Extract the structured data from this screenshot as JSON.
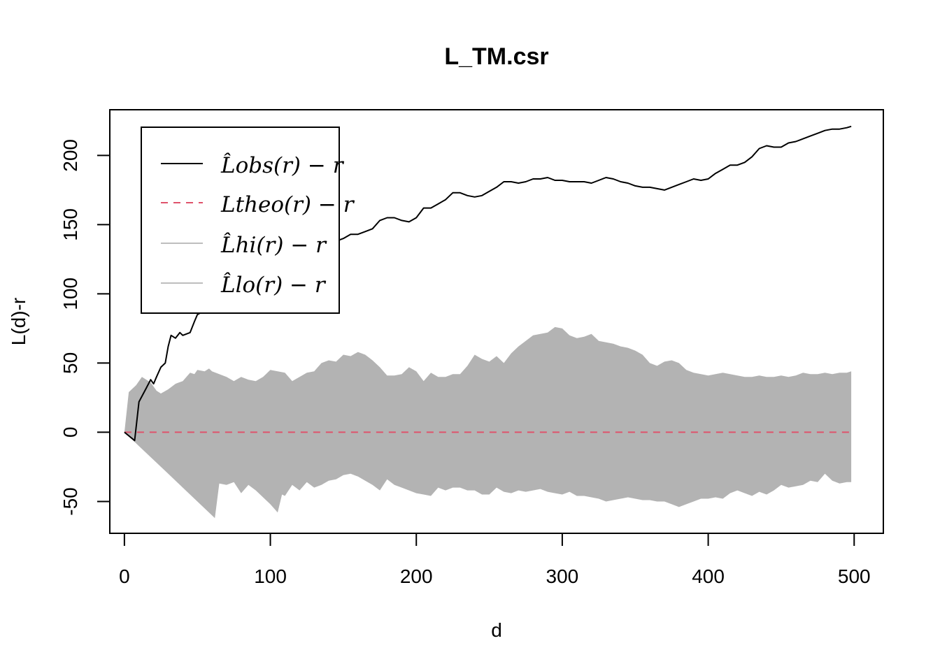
{
  "chart_data": {
    "type": "line",
    "title": "L_TM.csr",
    "xlabel": "d",
    "ylabel": "L(d)-r",
    "xlim": [
      -10,
      520
    ],
    "ylim": [
      -73,
      233
    ],
    "x_ticks": [
      0,
      100,
      200,
      300,
      400,
      500
    ],
    "y_ticks": [
      -50,
      0,
      50,
      100,
      150,
      200
    ],
    "x_tick_labels": [
      "0",
      "100",
      "200",
      "300",
      "400",
      "500"
    ],
    "y_tick_labels": [
      "-50",
      "0",
      "50",
      "100",
      "150",
      "200"
    ],
    "legend": {
      "position": "top-left",
      "entries": [
        {
          "label": "L̂obs(r) − r",
          "color": "#000000",
          "style": "solid"
        },
        {
          "label": "Ltheo(r) − r",
          "color": "#DF536B",
          "style": "dashed"
        },
        {
          "label": "L̂hi(r) − r",
          "color": "#BEBEBE",
          "style": "solid"
        },
        {
          "label": "L̂lo(r) − r",
          "color": "#BEBEBE",
          "style": "solid"
        }
      ]
    },
    "colors": {
      "obs": "#000000",
      "theo": "#DF536B",
      "envelope": "#B3B3B3"
    },
    "series": [
      {
        "name": "L̂obs(r) − r",
        "x": [
          0,
          7,
          10,
          15,
          18,
          20,
          22,
          25,
          28,
          30,
          32,
          35,
          38,
          40,
          45,
          48,
          50,
          55,
          58,
          60,
          62,
          65,
          68,
          70,
          75,
          80,
          85,
          88,
          90,
          95,
          98,
          100,
          105,
          110,
          115,
          120,
          125,
          130,
          135,
          140,
          145,
          150,
          155,
          160,
          165,
          170,
          175,
          180,
          185,
          190,
          195,
          200,
          205,
          210,
          215,
          220,
          225,
          230,
          235,
          240,
          245,
          250,
          255,
          260,
          265,
          270,
          275,
          280,
          285,
          290,
          295,
          300,
          305,
          310,
          315,
          320,
          325,
          330,
          335,
          340,
          345,
          350,
          355,
          360,
          365,
          370,
          375,
          380,
          385,
          390,
          395,
          400,
          405,
          410,
          415,
          420,
          425,
          430,
          435,
          440,
          445,
          450,
          455,
          460,
          465,
          470,
          475,
          480,
          485,
          490,
          495,
          498
        ],
        "y": [
          0,
          -6,
          22,
          32,
          38,
          35,
          40,
          47,
          50,
          62,
          70,
          68,
          72,
          70,
          72,
          80,
          85,
          88,
          92,
          95,
          98,
          100,
          101,
          100,
          104,
          108,
          112,
          114,
          116,
          115,
          113,
          112,
          118,
          120,
          120,
          122,
          127,
          125,
          128,
          134,
          138,
          140,
          143,
          143,
          145,
          147,
          153,
          155,
          155,
          153,
          152,
          155,
          162,
          162,
          165,
          168,
          173,
          173,
          171,
          170,
          171,
          174,
          177,
          181,
          181,
          180,
          181,
          183,
          183,
          184,
          182,
          182,
          181,
          181,
          181,
          180,
          182,
          184,
          183,
          181,
          180,
          178,
          177,
          177,
          176,
          175,
          177,
          179,
          181,
          183,
          182,
          183,
          187,
          190,
          193,
          193,
          195,
          199,
          205,
          207,
          206,
          206,
          209,
          210,
          212,
          214,
          216,
          218,
          219,
          219,
          220,
          221
        ]
      },
      {
        "name": "Ltheo(r) − r",
        "x": [
          0,
          498
        ],
        "y": [
          0,
          0
        ]
      },
      {
        "name": "L̂hi(r) − r",
        "x": [
          0,
          3,
          8,
          12,
          15,
          18,
          22,
          25,
          30,
          35,
          40,
          45,
          48,
          50,
          55,
          58,
          60,
          65,
          70,
          75,
          80,
          85,
          90,
          95,
          100,
          105,
          110,
          115,
          120,
          125,
          130,
          135,
          140,
          145,
          150,
          155,
          160,
          165,
          170,
          175,
          180,
          185,
          190,
          195,
          200,
          205,
          210,
          215,
          220,
          225,
          230,
          235,
          240,
          245,
          250,
          255,
          260,
          265,
          270,
          275,
          280,
          285,
          290,
          295,
          300,
          305,
          310,
          315,
          320,
          325,
          330,
          335,
          340,
          345,
          350,
          355,
          360,
          365,
          370,
          375,
          380,
          385,
          390,
          395,
          400,
          405,
          410,
          415,
          420,
          425,
          430,
          435,
          440,
          445,
          450,
          455,
          460,
          465,
          470,
          475,
          480,
          485,
          490,
          495,
          498
        ],
        "y": [
          0,
          29,
          34,
          40,
          38,
          36,
          30,
          28,
          31,
          35,
          37,
          43,
          42,
          45,
          44,
          46,
          44,
          42,
          40,
          37,
          40,
          38,
          37,
          40,
          45,
          44,
          43,
          37,
          40,
          43,
          44,
          50,
          52,
          51,
          56,
          55,
          58,
          56,
          52,
          47,
          41,
          41,
          42,
          47,
          44,
          37,
          43,
          40,
          40,
          42,
          42,
          48,
          56,
          53,
          51,
          55,
          50,
          57,
          62,
          66,
          70,
          71,
          72,
          76,
          75,
          70,
          68,
          69,
          71,
          66,
          65,
          64,
          62,
          61,
          59,
          56,
          50,
          48,
          51,
          52,
          50,
          45,
          43,
          42,
          41,
          42,
          43,
          42,
          41,
          40,
          40,
          41,
          40,
          40,
          41,
          40,
          41,
          43,
          42,
          42,
          43,
          42,
          43,
          43,
          44
        ]
      },
      {
        "name": "L̂lo(r) − r",
        "x": [
          0,
          10,
          20,
          30,
          40,
          50,
          62,
          65,
          70,
          75,
          80,
          85,
          90,
          95,
          100,
          105,
          108,
          110,
          115,
          120,
          125,
          130,
          135,
          140,
          145,
          150,
          155,
          160,
          165,
          170,
          175,
          180,
          185,
          190,
          195,
          200,
          205,
          210,
          215,
          220,
          225,
          230,
          235,
          240,
          245,
          250,
          255,
          260,
          265,
          270,
          275,
          280,
          285,
          290,
          295,
          300,
          305,
          310,
          315,
          320,
          325,
          330,
          335,
          340,
          345,
          350,
          355,
          360,
          365,
          370,
          375,
          380,
          385,
          390,
          395,
          400,
          405,
          410,
          415,
          420,
          425,
          430,
          435,
          440,
          445,
          450,
          455,
          460,
          465,
          470,
          475,
          480,
          485,
          490,
          495,
          498
        ],
        "y": [
          0,
          -10,
          -20,
          -30,
          -40,
          -50,
          -62,
          -37,
          -38,
          -36,
          -44,
          -38,
          -42,
          -47,
          -52,
          -58,
          -45,
          -46,
          -38,
          -42,
          -36,
          -40,
          -38,
          -35,
          -34,
          -31,
          -30,
          -32,
          -35,
          -38,
          -42,
          -34,
          -38,
          -40,
          -42,
          -44,
          -45,
          -46,
          -40,
          -42,
          -40,
          -40,
          -42,
          -42,
          -45,
          -45,
          -40,
          -43,
          -44,
          -42,
          -43,
          -42,
          -41,
          -43,
          -44,
          -45,
          -43,
          -46,
          -46,
          -47,
          -48,
          -50,
          -49,
          -48,
          -47,
          -48,
          -49,
          -49,
          -50,
          -50,
          -52,
          -54,
          -52,
          -50,
          -48,
          -48,
          -47,
          -48,
          -44,
          -42,
          -44,
          -46,
          -43,
          -45,
          -42,
          -38,
          -40,
          -39,
          -38,
          -35,
          -36,
          -30,
          -35,
          -37,
          -36,
          -36
        ]
      }
    ]
  }
}
